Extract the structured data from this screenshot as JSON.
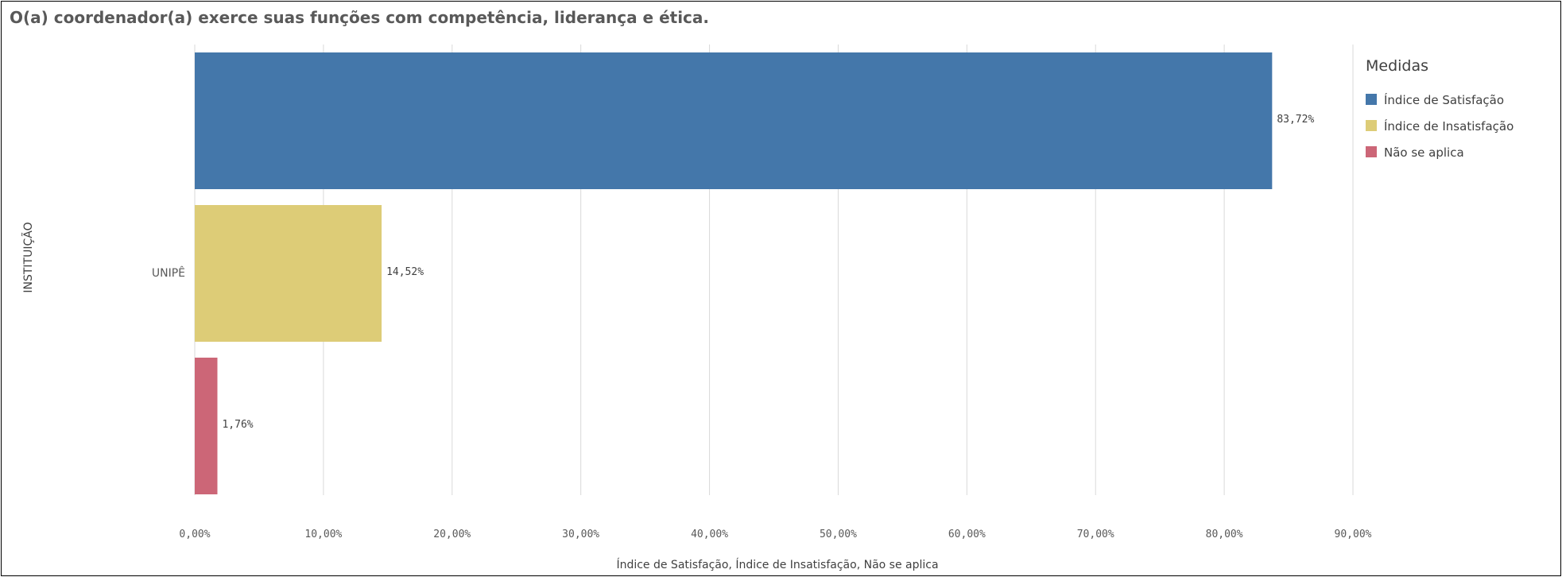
{
  "chart_data": {
    "type": "bar",
    "orientation": "horizontal",
    "title": "O(a) coordenador(a) exerce suas funções com competência, liderança e ética.",
    "categories": [
      "UNIPÊ"
    ],
    "series": [
      {
        "name": "Índice de Satisfação",
        "values": [
          83.72
        ],
        "label": "83,72%",
        "color": "#4477aa"
      },
      {
        "name": "Índice de Insatisfação",
        "values": [
          14.52
        ],
        "label": "14,52%",
        "color": "#ddcc77"
      },
      {
        "name": "Não se aplica",
        "values": [
          1.76
        ],
        "label": "1,76%",
        "color": "#cc6677"
      }
    ],
    "xlabel": "Índice de Satisfação, Índice de Insatisfação, Não se aplica",
    "ylabel": "INSTITUIÇÃO",
    "xlim": [
      0,
      90
    ],
    "xticks": [
      "0,00%",
      "10,00%",
      "20,00%",
      "30,00%",
      "40,00%",
      "50,00%",
      "60,00%",
      "70,00%",
      "80,00%",
      "90,00%"
    ],
    "grid": true,
    "legend": {
      "title": "Medidas",
      "position": "right"
    }
  }
}
